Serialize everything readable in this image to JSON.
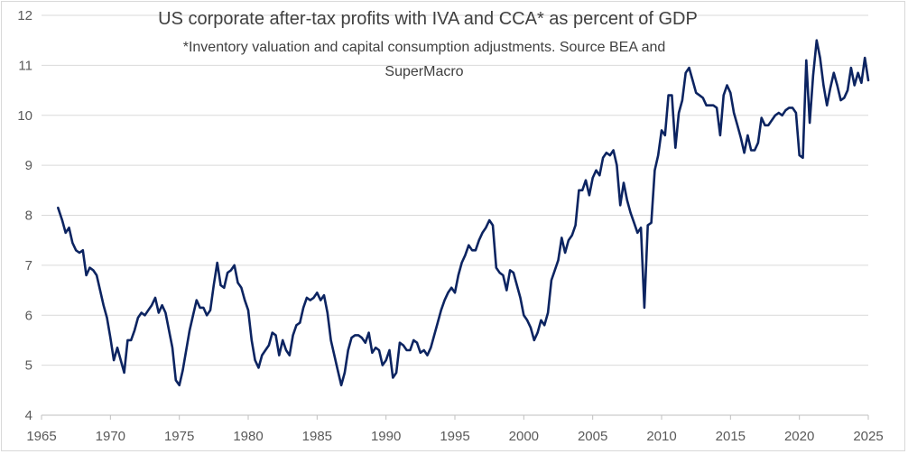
{
  "chart_data": {
    "type": "line",
    "title": "US corporate after-tax profits with IVA and CCA* as percent of GDP",
    "subtitle_line1": "*Inventory valuation and capital consumption adjustments. Source BEA and",
    "subtitle_line2": "SuperMacro",
    "xlabel": "",
    "ylabel": "",
    "xlim": [
      1965,
      2025
    ],
    "ylim": [
      4,
      12
    ],
    "grid": true,
    "legend": "none",
    "series_color": "#0c2461",
    "x_ticks": [
      "1965",
      "1970",
      "1975",
      "1980",
      "1985",
      "1990",
      "1995",
      "2000",
      "2005",
      "2010",
      "2015",
      "2020",
      "2025"
    ],
    "y_ticks": [
      "4",
      "5",
      "6",
      "7",
      "8",
      "9",
      "10",
      "11",
      "12"
    ],
    "series": [
      {
        "name": "After-tax profits % of GDP",
        "x": [
          1966.2,
          1966.5,
          1966.75,
          1967.0,
          1967.25,
          1967.5,
          1967.75,
          1968.0,
          1968.25,
          1968.5,
          1968.75,
          1969.0,
          1969.25,
          1969.5,
          1969.75,
          1970.0,
          1970.25,
          1970.5,
          1970.75,
          1971.0,
          1971.25,
          1971.5,
          1971.75,
          1972.0,
          1972.25,
          1972.5,
          1972.75,
          1973.0,
          1973.25,
          1973.5,
          1973.75,
          1974.0,
          1974.25,
          1974.5,
          1974.75,
          1975.0,
          1975.25,
          1975.5,
          1975.75,
          1976.0,
          1976.25,
          1976.5,
          1976.75,
          1977.0,
          1977.25,
          1977.5,
          1977.75,
          1978.0,
          1978.25,
          1978.5,
          1978.75,
          1979.0,
          1979.25,
          1979.5,
          1979.75,
          1980.0,
          1980.25,
          1980.5,
          1980.75,
          1981.0,
          1981.25,
          1981.5,
          1981.75,
          1982.0,
          1982.25,
          1982.5,
          1982.75,
          1983.0,
          1983.25,
          1983.5,
          1983.75,
          1984.0,
          1984.25,
          1984.5,
          1984.75,
          1985.0,
          1985.25,
          1985.5,
          1985.75,
          1986.0,
          1986.25,
          1986.5,
          1986.75,
          1987.0,
          1987.25,
          1987.5,
          1987.75,
          1988.0,
          1988.25,
          1988.5,
          1988.75,
          1989.0,
          1989.25,
          1989.5,
          1989.75,
          1990.0,
          1990.25,
          1990.5,
          1990.75,
          1991.0,
          1991.25,
          1991.5,
          1991.75,
          1992.0,
          1992.25,
          1992.5,
          1992.75,
          1993.0,
          1993.25,
          1993.5,
          1993.75,
          1994.0,
          1994.25,
          1994.5,
          1994.75,
          1995.0,
          1995.25,
          1995.5,
          1995.75,
          1996.0,
          1996.25,
          1996.5,
          1996.75,
          1997.0,
          1997.25,
          1997.5,
          1997.75,
          1998.0,
          1998.25,
          1998.5,
          1998.75,
          1999.0,
          1999.25,
          1999.5,
          1999.75,
          2000.0,
          2000.25,
          2000.5,
          2000.75,
          2001.0,
          2001.25,
          2001.5,
          2001.75,
          2002.0,
          2002.25,
          2002.5,
          2002.75,
          2003.0,
          2003.25,
          2003.5,
          2003.75,
          2004.0,
          2004.25,
          2004.5,
          2004.75,
          2005.0,
          2005.25,
          2005.5,
          2005.75,
          2006.0,
          2006.25,
          2006.5,
          2006.75,
          2007.0,
          2007.25,
          2007.5,
          2007.75,
          2008.0,
          2008.25,
          2008.5,
          2008.75,
          2009.0,
          2009.25,
          2009.5,
          2009.75,
          2010.0,
          2010.25,
          2010.5,
          2010.75,
          2011.0,
          2011.25,
          2011.5,
          2011.75,
          2012.0,
          2012.25,
          2012.5,
          2012.75,
          2013.0,
          2013.25,
          2013.5,
          2013.75,
          2014.0,
          2014.25,
          2014.5,
          2014.75,
          2015.0,
          2015.25,
          2015.5,
          2015.75,
          2016.0,
          2016.25,
          2016.5,
          2016.75,
          2017.0,
          2017.25,
          2017.5,
          2017.75,
          2018.0,
          2018.25,
          2018.5,
          2018.75,
          2019.0,
          2019.25,
          2019.5,
          2019.75,
          2020.0,
          2020.25,
          2020.5,
          2020.75,
          2021.0,
          2021.25,
          2021.5,
          2021.75,
          2022.0,
          2022.25,
          2022.5,
          2022.75,
          2023.0,
          2023.25,
          2023.5,
          2023.75,
          2024.0,
          2024.25,
          2024.5,
          2024.75,
          2025.0
        ],
        "values": [
          8.15,
          7.9,
          7.65,
          7.75,
          7.45,
          7.3,
          7.25,
          7.3,
          6.8,
          6.95,
          6.9,
          6.8,
          6.5,
          6.2,
          5.95,
          5.55,
          5.1,
          5.35,
          5.1,
          4.85,
          5.5,
          5.5,
          5.7,
          5.95,
          6.05,
          6.0,
          6.1,
          6.2,
          6.35,
          6.05,
          6.2,
          6.05,
          5.7,
          5.35,
          4.7,
          4.6,
          4.9,
          5.3,
          5.7,
          6.0,
          6.3,
          6.15,
          6.15,
          6.0,
          6.1,
          6.6,
          7.05,
          6.6,
          6.55,
          6.85,
          6.9,
          7.0,
          6.65,
          6.55,
          6.3,
          6.1,
          5.5,
          5.1,
          4.95,
          5.2,
          5.3,
          5.4,
          5.65,
          5.6,
          5.2,
          5.5,
          5.3,
          5.2,
          5.6,
          5.8,
          5.85,
          6.15,
          6.35,
          6.3,
          6.35,
          6.45,
          6.3,
          6.4,
          6.05,
          5.5,
          5.2,
          4.9,
          4.6,
          4.85,
          5.3,
          5.55,
          5.6,
          5.6,
          5.55,
          5.45,
          5.65,
          5.25,
          5.35,
          5.3,
          5.0,
          5.1,
          5.3,
          4.75,
          4.85,
          5.45,
          5.4,
          5.3,
          5.3,
          5.5,
          5.45,
          5.25,
          5.3,
          5.2,
          5.35,
          5.6,
          5.85,
          6.1,
          6.3,
          6.45,
          6.55,
          6.45,
          6.8,
          7.05,
          7.2,
          7.4,
          7.3,
          7.3,
          7.5,
          7.65,
          7.75,
          7.9,
          7.8,
          6.95,
          6.85,
          6.8,
          6.5,
          6.9,
          6.85,
          6.6,
          6.35,
          6.0,
          5.9,
          5.75,
          5.5,
          5.65,
          5.9,
          5.8,
          6.05,
          6.7,
          6.9,
          7.1,
          7.55,
          7.25,
          7.5,
          7.6,
          7.8,
          8.5,
          8.5,
          8.7,
          8.4,
          8.75,
          8.9,
          8.8,
          9.15,
          9.25,
          9.2,
          9.3,
          9.0,
          8.2,
          8.65,
          8.3,
          8.05,
          7.85,
          7.65,
          7.75,
          6.15,
          7.8,
          7.85,
          8.9,
          9.2,
          9.7,
          9.6,
          10.4,
          10.4,
          9.35,
          10.05,
          10.3,
          10.85,
          10.95,
          10.7,
          10.45,
          10.4,
          10.35,
          10.2,
          10.2,
          10.2,
          10.15,
          9.6,
          10.4,
          10.6,
          10.45,
          10.05,
          9.8,
          9.55,
          9.25,
          9.6,
          9.3,
          9.3,
          9.45,
          9.95,
          9.8,
          9.8,
          9.9,
          10.0,
          10.05,
          10.0,
          10.1,
          10.15,
          10.15,
          10.05,
          9.2,
          9.15,
          11.1,
          9.85,
          10.8,
          11.5,
          11.15,
          10.6,
          10.2,
          10.55,
          10.85,
          10.6,
          10.3,
          10.35,
          10.5,
          10.95,
          10.6,
          10.85,
          10.65,
          11.15,
          10.7
        ]
      }
    ]
  }
}
